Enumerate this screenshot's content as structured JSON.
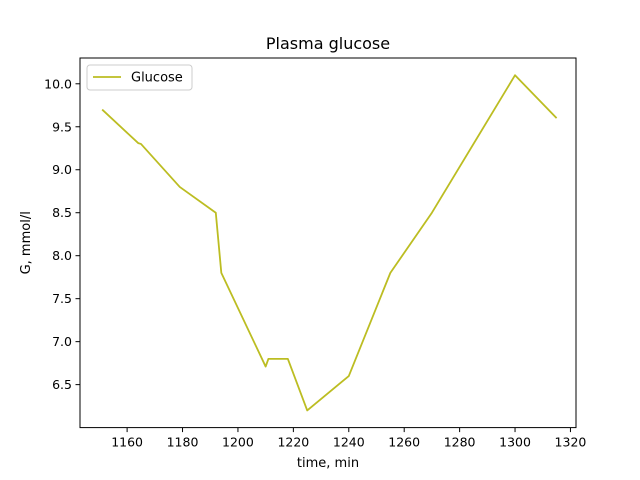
{
  "chart_data": {
    "type": "line",
    "title": "Plasma glucose",
    "xlabel": "time, min",
    "ylabel": "G, mmol/l",
    "xlim": [
      1143,
      1322
    ],
    "ylim": [
      6.0,
      10.3
    ],
    "x_ticks": [
      1160,
      1180,
      1200,
      1220,
      1240,
      1260,
      1280,
      1300,
      1320
    ],
    "y_ticks": [
      6.5,
      7.0,
      7.5,
      8.0,
      8.5,
      9.0,
      9.5,
      10.0
    ],
    "x_tick_labels": [
      "1160",
      "1180",
      "1200",
      "1220",
      "1240",
      "1260",
      "1280",
      "1300",
      "1320"
    ],
    "y_tick_labels": [
      "6.5",
      "7.0",
      "7.5",
      "8.0",
      "8.5",
      "9.0",
      "9.5",
      "10.0"
    ],
    "grid": false,
    "legend": {
      "position": "top-left",
      "entries": [
        "Glucose"
      ]
    },
    "series": [
      {
        "name": "Glucose",
        "color": "#bcbd22",
        "x": [
          1151,
          1164,
          1165,
          1179,
          1192,
          1194,
          1210,
          1211,
          1218,
          1225,
          1240,
          1255,
          1270,
          1300,
          1315
        ],
        "y": [
          9.7,
          9.31,
          9.3,
          8.8,
          8.5,
          7.8,
          6.71,
          6.8,
          6.8,
          6.2,
          6.6,
          7.8,
          8.5,
          10.1,
          9.6
        ]
      }
    ]
  }
}
